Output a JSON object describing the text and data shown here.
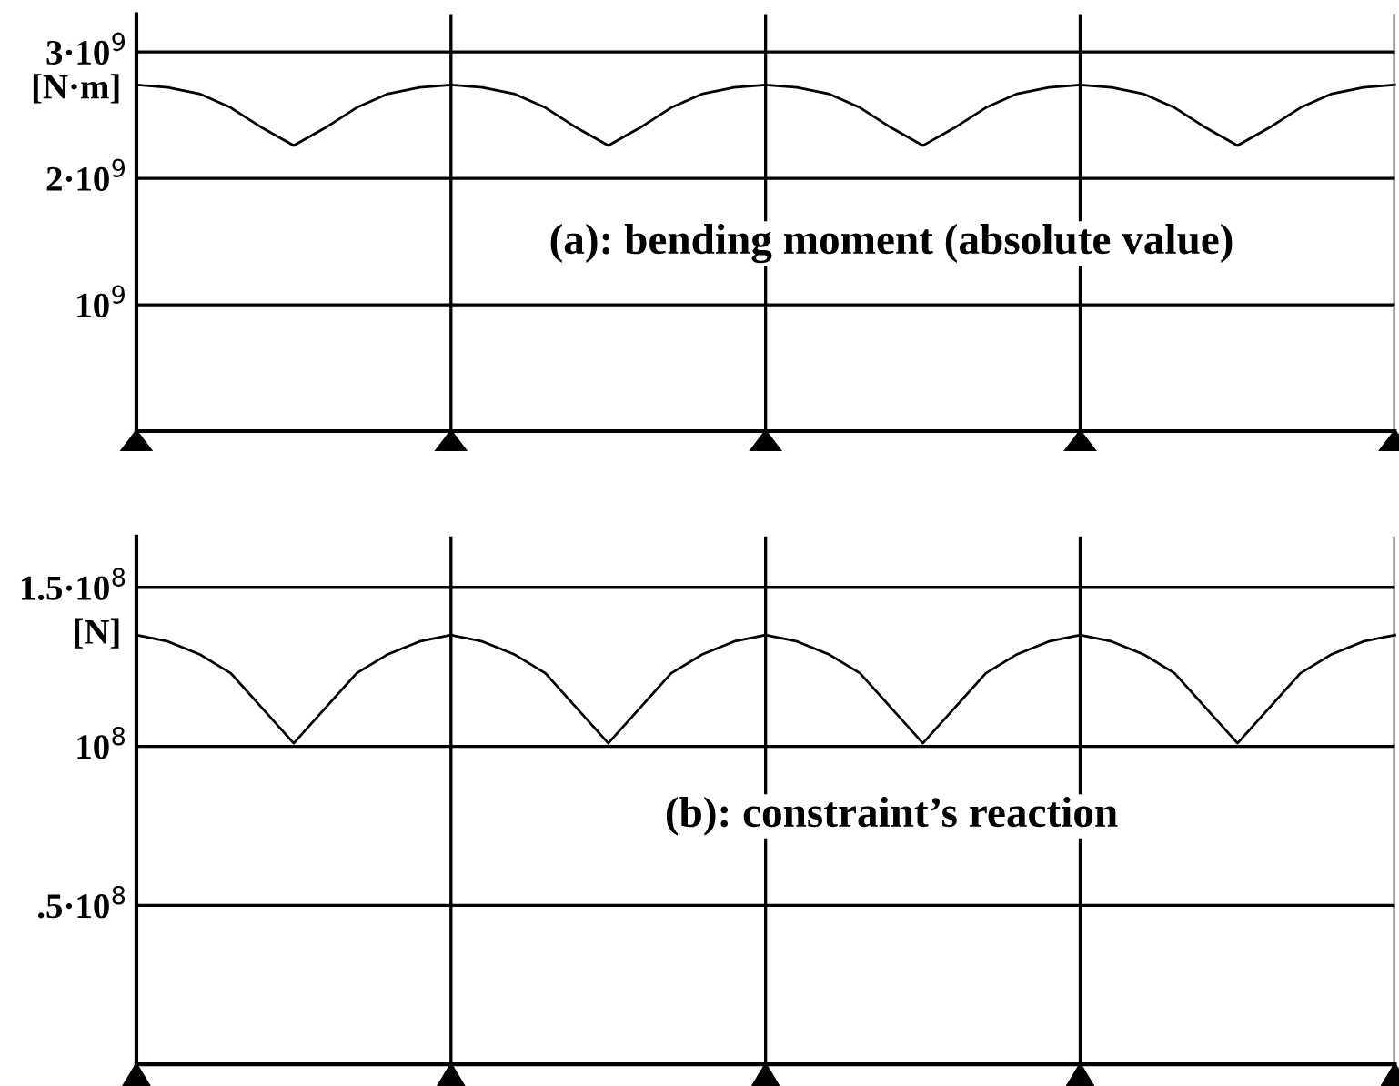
{
  "chart_data": [
    {
      "type": "line",
      "ylabel": "[N·m]",
      "annotations": [
        "(a): bending moment (absolute value)"
      ],
      "categories": [
        null,
        null,
        null,
        null,
        null,
        null,
        null,
        null,
        null,
        null,
        null,
        null,
        null,
        null,
        null,
        null,
        null,
        null,
        null,
        null,
        null,
        null,
        null,
        null,
        null,
        null,
        null,
        null,
        null,
        null,
        null,
        null,
        null,
        null,
        null,
        null,
        null,
        null,
        null,
        null,
        null
      ],
      "series": [
        {
          "color": "#000000",
          "values": [
            2740000000.0,
            2720000000.0,
            2670000000.0,
            2560000000.0,
            2400000000.0,
            2260000000.0,
            2400000000.0,
            2560000000.0,
            2670000000.0,
            2720000000.0,
            2740000000.0,
            2720000000.0,
            2670000000.0,
            2560000000.0,
            2400000000.0,
            2260000000.0,
            2400000000.0,
            2560000000.0,
            2670000000.0,
            2720000000.0,
            2740000000.0,
            2720000000.0,
            2670000000.0,
            2560000000.0,
            2400000000.0,
            2260000000.0,
            2400000000.0,
            2560000000.0,
            2670000000.0,
            2720000000.0,
            2740000000.0,
            2720000000.0,
            2670000000.0,
            2560000000.0,
            2400000000.0,
            2260000000.0,
            2400000000.0,
            2560000000.0,
            2670000000.0,
            2720000000.0,
            2740000000.0
          ]
        }
      ],
      "ylim": [
        0,
        3300000000.0
      ],
      "yticks": [
        {
          "value": 1000000000.0,
          "label": "10$^{9}$"
        },
        {
          "value": 2000000000.0,
          "label": "2·10$^{9}$"
        },
        {
          "value": 3000000000.0,
          "label": "3·10$^{9}$"
        }
      ],
      "grid": true,
      "tick_labels": "y",
      "marker": "none",
      "line_style": "solid"
    },
    {
      "type": "line",
      "ylabel": "[N]",
      "annotations": [
        "(b): constraint’s reaction"
      ],
      "categories": [
        null,
        null,
        null,
        null,
        null,
        null,
        null,
        null,
        null,
        null,
        null,
        null,
        null,
        null,
        null,
        null,
        null,
        null,
        null,
        null,
        null,
        null,
        null,
        null,
        null,
        null,
        null,
        null,
        null,
        null,
        null,
        null,
        null,
        null,
        null,
        null,
        null,
        null,
        null,
        null,
        null
      ],
      "series": [
        {
          "color": "#000000",
          "values": [
            135000000.0,
            133000000.0,
            129000000.0,
            123000000.0,
            112000000.0,
            101000000.0,
            112000000.0,
            123000000.0,
            129000000.0,
            133000000.0,
            135000000.0,
            133000000.0,
            129000000.0,
            123000000.0,
            112000000.0,
            101000000.0,
            112000000.0,
            123000000.0,
            129000000.0,
            133000000.0,
            135000000.0,
            133000000.0,
            129000000.0,
            123000000.0,
            112000000.0,
            101000000.0,
            112000000.0,
            123000000.0,
            129000000.0,
            133000000.0,
            135000000.0,
            133000000.0,
            129000000.0,
            123000000.0,
            112000000.0,
            101000000.0,
            112000000.0,
            123000000.0,
            129000000.0,
            133000000.0,
            135000000.0
          ]
        }
      ],
      "ylim": [
        0,
        166000000.0
      ],
      "yticks": [
        {
          "value": 50000000.0,
          "label": ".5·10$^{8}$"
        },
        {
          "value": 100000000.0,
          "label": "10$^{8}$"
        },
        {
          "value": 150000000.0,
          "label": "1.5·10$^{8}$"
        }
      ],
      "grid": true,
      "tick_labels": "y",
      "marker": "none",
      "line_style": "solid"
    }
  ]
}
